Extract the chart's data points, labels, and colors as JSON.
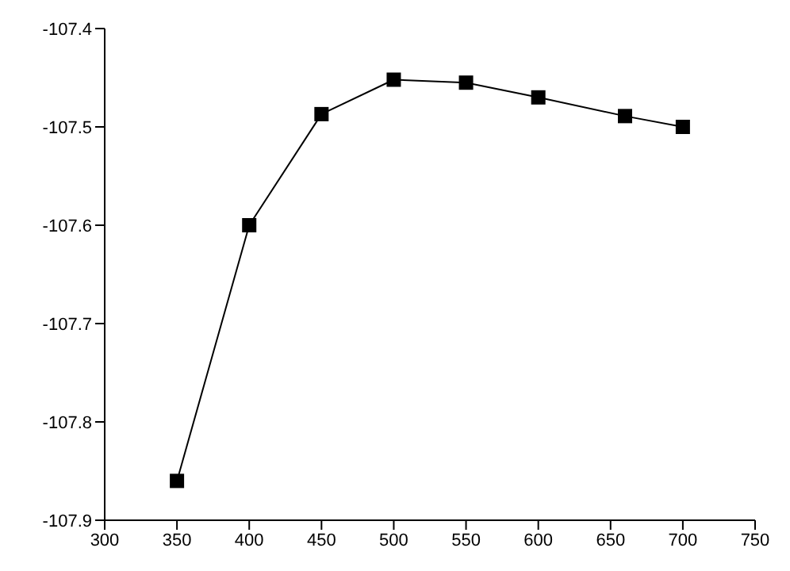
{
  "chart_data": {
    "type": "line",
    "x": [
      350,
      400,
      450,
      500,
      550,
      600,
      660,
      700
    ],
    "series": [
      {
        "color": "#000000",
        "values": [
          -107.86,
          -107.6,
          -107.487,
          -107.452,
          -107.455,
          -107.47,
          -107.489,
          -107.5
        ]
      }
    ],
    "xlim": [
      300,
      750
    ],
    "xticks": [
      300,
      350,
      400,
      450,
      500,
      550,
      600,
      650,
      700,
      750
    ],
    "ylim": [
      -107.9,
      -107.4
    ],
    "yticks": [
      -107.9,
      -107.8,
      -107.7,
      -107.6,
      -107.5,
      -107.4
    ],
    "marker": "square",
    "line_style": "solid",
    "grid": false
  }
}
